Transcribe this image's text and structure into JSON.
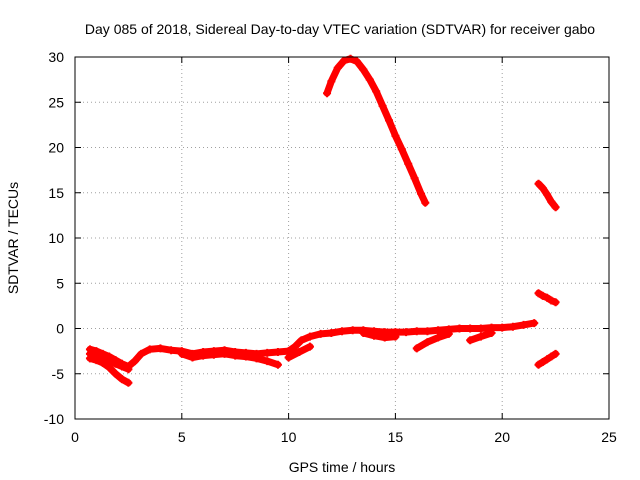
{
  "chart_data": {
    "type": "scatter",
    "title": "Day 085 of 2018, Sidereal Day-to-day VTEC variation (SDTVAR) for receiver gabo",
    "xlabel": "GPS time / hours",
    "ylabel": "SDTVAR / TECUs",
    "xlim": [
      0,
      25
    ],
    "ylim": [
      -10,
      30
    ],
    "xticks": [
      0,
      5,
      10,
      15,
      20,
      25
    ],
    "yticks": [
      -10,
      -5,
      0,
      5,
      10,
      15,
      20,
      25,
      30
    ],
    "grid": true,
    "legend": "none",
    "color": "#ff0000",
    "series": [
      {
        "x": [
          0.7,
          1.0,
          1.3,
          1.6,
          1.9,
          2.2,
          2.5,
          2.8,
          3.1,
          3.5,
          4.0,
          4.5,
          5.0,
          5.5,
          6.0,
          6.5,
          7.0,
          7.5,
          8.0,
          8.5,
          9.0,
          9.5,
          10.0,
          10.3,
          10.6,
          11.0,
          11.5,
          12.0,
          12.5,
          13.0,
          13.5,
          14.0,
          14.5,
          15.0,
          15.5,
          16.0,
          16.5,
          17.0,
          17.5,
          18.0,
          18.5,
          19.0,
          19.5,
          20.0,
          20.5,
          21.0,
          21.5
        ],
        "y": [
          -2.3,
          -2.5,
          -2.8,
          -3.1,
          -3.5,
          -3.9,
          -4.2,
          -3.6,
          -2.8,
          -2.3,
          -2.2,
          -2.4,
          -2.5,
          -2.8,
          -2.6,
          -2.5,
          -2.4,
          -2.6,
          -2.7,
          -2.8,
          -2.7,
          -2.6,
          -2.5,
          -2.0,
          -1.3,
          -0.9,
          -0.6,
          -0.5,
          -0.3,
          -0.2,
          -0.2,
          -0.3,
          -0.4,
          -0.4,
          -0.4,
          -0.3,
          -0.3,
          -0.2,
          -0.1,
          0.0,
          0.0,
          0.0,
          0.1,
          0.1,
          0.2,
          0.4,
          0.6
        ]
      },
      {
        "x": [
          0.7,
          1.0,
          1.3,
          1.6,
          1.9,
          2.2,
          2.5
        ],
        "y": [
          -3.3,
          -3.5,
          -3.8,
          -4.3,
          -5.0,
          -5.6,
          -6.0
        ]
      },
      {
        "x": [
          0.7,
          1.0,
          1.3,
          1.6,
          1.9,
          2.2,
          2.5
        ],
        "y": [
          -2.8,
          -3.0,
          -3.3,
          -3.6,
          -3.9,
          -4.2,
          -4.5
        ]
      },
      {
        "x": [
          5.0,
          5.5,
          6.0,
          6.5,
          7.0,
          7.5,
          8.0,
          8.5,
          9.0,
          9.5
        ],
        "y": [
          -2.8,
          -3.2,
          -3.0,
          -2.9,
          -2.8,
          -3.0,
          -3.1,
          -3.3,
          -3.6,
          -4.0
        ]
      },
      {
        "x": [
          10.0,
          10.5,
          11.0
        ],
        "y": [
          -3.2,
          -2.6,
          -2.0
        ]
      },
      {
        "x": [
          13.5,
          14.0,
          14.5,
          15.0
        ],
        "y": [
          -0.5,
          -0.8,
          -1.0,
          -0.9
        ]
      },
      {
        "x": [
          16.0,
          16.5,
          17.0,
          17.5
        ],
        "y": [
          -2.2,
          -1.5,
          -1.0,
          -0.6
        ]
      },
      {
        "x": [
          18.5,
          19.0,
          19.5
        ],
        "y": [
          -1.3,
          -0.9,
          -0.5
        ]
      },
      {
        "x": [
          11.8,
          12.0,
          12.3,
          12.6,
          12.9,
          13.2,
          13.5,
          13.8,
          14.1,
          14.4,
          14.7,
          15.0,
          15.3,
          15.6,
          15.9,
          16.2,
          16.4
        ],
        "y": [
          26.0,
          27.3,
          28.8,
          29.6,
          29.8,
          29.5,
          28.6,
          27.5,
          26.2,
          24.6,
          23.0,
          21.3,
          19.8,
          18.2,
          16.6,
          14.9,
          13.9
        ]
      },
      {
        "x": [
          21.7,
          21.9,
          22.1,
          22.3,
          22.5
        ],
        "y": [
          16.0,
          15.5,
          14.8,
          14.0,
          13.4
        ]
      },
      {
        "x": [
          21.7,
          21.9,
          22.1,
          22.3,
          22.5
        ],
        "y": [
          3.9,
          3.6,
          3.4,
          3.1,
          2.9
        ]
      },
      {
        "x": [
          21.7,
          21.9,
          22.1,
          22.3,
          22.5
        ],
        "y": [
          -4.0,
          -3.7,
          -3.4,
          -3.1,
          -2.8
        ]
      }
    ]
  }
}
